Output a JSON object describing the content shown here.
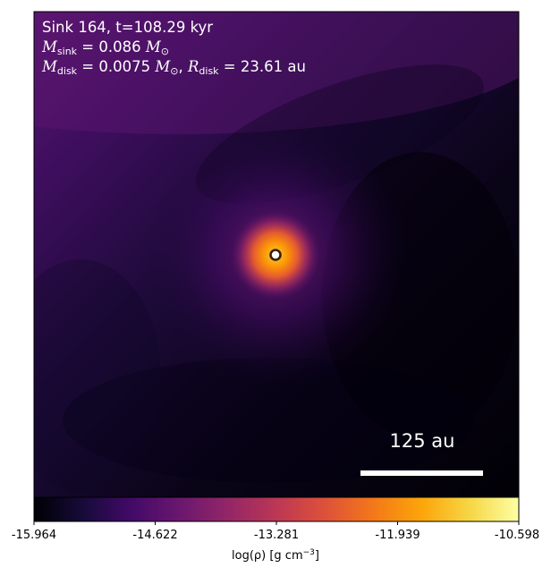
{
  "annotation": {
    "line1": "Sink 164, t=108.29 kyr",
    "sink_mass_symbol": "M",
    "sink_mass_subscript": "sink",
    "sink_mass_value": " = 0.086 ",
    "disk_mass_symbol": "M",
    "disk_mass_subscript": "disk",
    "disk_mass_value": " = 0.0075 ",
    "solar_symbol": "M",
    "solar_subscript": "⊙",
    "separator": ", ",
    "disk_radius_symbol": "R",
    "disk_radius_subscript": "disk",
    "disk_radius_value": " = 23.61 au"
  },
  "scalebar": {
    "label": "125 au"
  },
  "colorbar": {
    "colormap": "inferno",
    "ticks": [
      "-15.964",
      "-14.622",
      "-13.281",
      "-11.939",
      "-10.598"
    ],
    "label_prefix": "log(ρ) [g cm",
    "label_exponent": "−3",
    "label_suffix": "]"
  },
  "sink": {
    "marker_fill": "#ffffff",
    "marker_stroke": "#3a1f0a"
  },
  "colors": {
    "glow_core": "#fcffa4",
    "glow_mid": "#f98e09",
    "background_min": "#000004",
    "background_max": "#6a176e"
  }
}
